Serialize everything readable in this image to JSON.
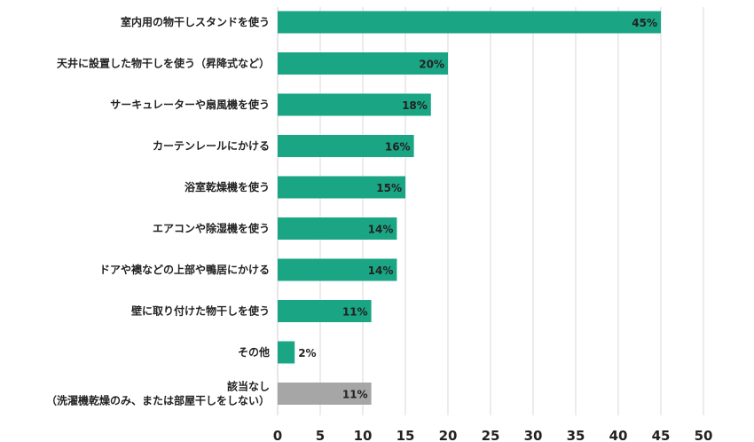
{
  "chart_data": {
    "type": "bar",
    "orientation": "horizontal",
    "categories": [
      [
        "室内用の物干しスタンドを使う"
      ],
      [
        "天井に設置した物干しを使う（昇降式など）"
      ],
      [
        "サーキュレーターや扇風機を使う"
      ],
      [
        "カーテンレールにかける"
      ],
      [
        "浴室乾燥機を使う"
      ],
      [
        "エアコンや除湿機を使う"
      ],
      [
        "ドアや襖などの上部や鴨居にかける"
      ],
      [
        "壁に取り付けた物干しを使う"
      ],
      [
        "その他"
      ],
      [
        "該当なし",
        "（洗濯機乾燥のみ、または部屋干しをしない）"
      ]
    ],
    "values": [
      45,
      20,
      18,
      16,
      15,
      14,
      14,
      11,
      2,
      11
    ],
    "value_labels": [
      "45%",
      "20%",
      "18%",
      "16%",
      "15%",
      "14%",
      "14%",
      "11%",
      "2%",
      "11%"
    ],
    "bar_colors": [
      "#1aa584",
      "#1aa584",
      "#1aa584",
      "#1aa584",
      "#1aa584",
      "#1aa584",
      "#1aa584",
      "#1aa584",
      "#1aa584",
      "#a6a6a6"
    ],
    "xlim": [
      0,
      50
    ],
    "xticks": [
      0,
      5,
      10,
      15,
      20,
      25,
      30,
      35,
      40,
      45,
      50
    ],
    "grid": "vertical",
    "title": "",
    "xlabel": "",
    "ylabel": ""
  }
}
